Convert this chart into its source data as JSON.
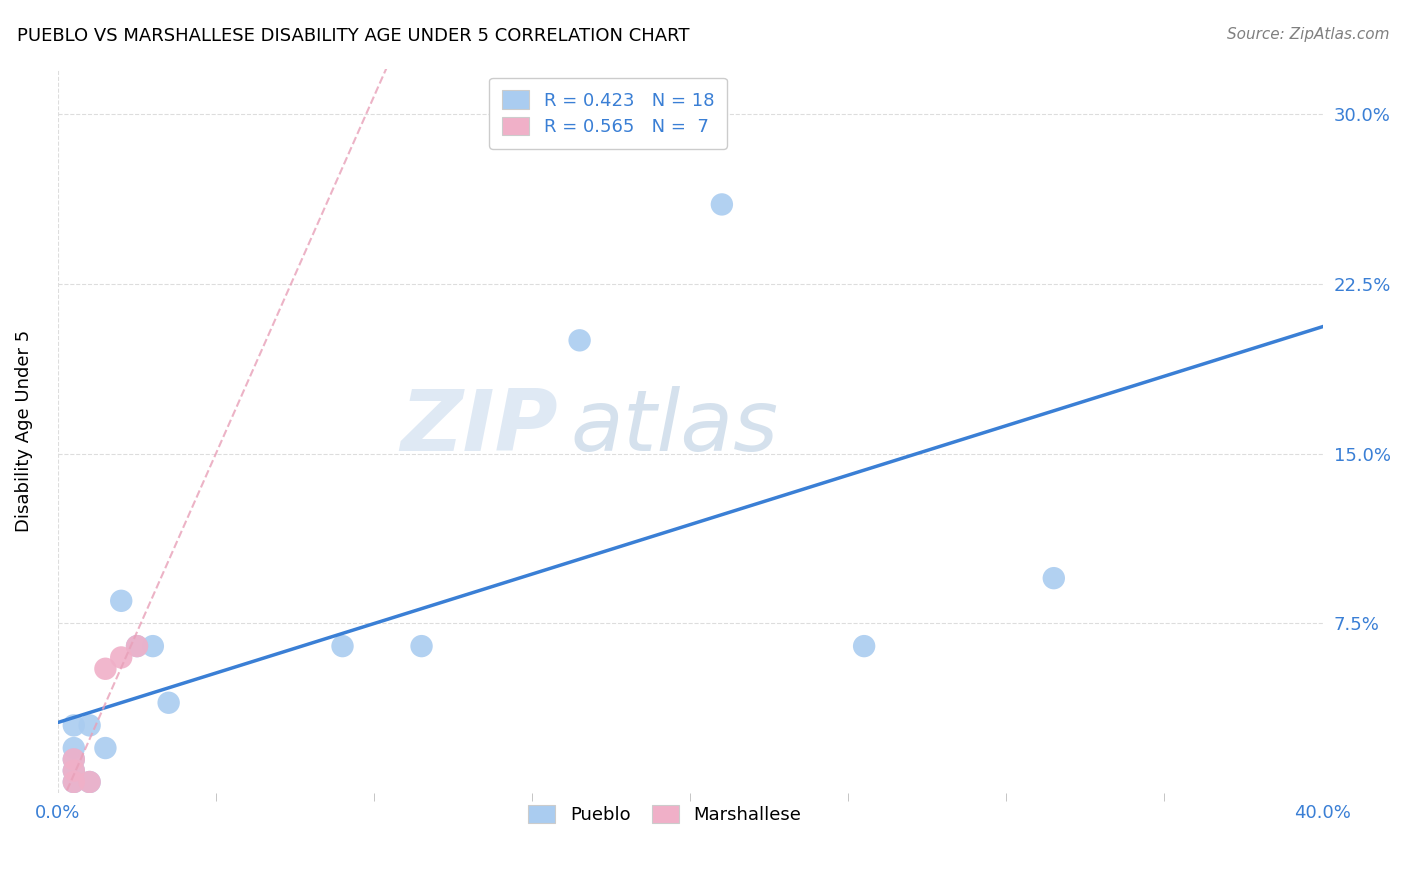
{
  "title": "PUEBLO VS MARSHALLESE DISABILITY AGE UNDER 5 CORRELATION CHART",
  "source": "Source: ZipAtlas.com",
  "ylabel": "Disability Age Under 5",
  "xlim": [
    0.0,
    0.4
  ],
  "ylim": [
    0.0,
    0.32
  ],
  "pueblo_x": [
    0.005,
    0.005,
    0.005,
    0.005,
    0.005,
    0.01,
    0.01,
    0.015,
    0.02,
    0.025,
    0.03,
    0.035,
    0.09,
    0.115,
    0.165,
    0.21,
    0.315,
    0.255
  ],
  "pueblo_y": [
    0.005,
    0.01,
    0.015,
    0.02,
    0.03,
    0.005,
    0.03,
    0.02,
    0.085,
    0.065,
    0.065,
    0.04,
    0.065,
    0.065,
    0.2,
    0.26,
    0.095,
    0.065
  ],
  "marshallese_x": [
    0.005,
    0.005,
    0.005,
    0.01,
    0.015,
    0.02,
    0.025
  ],
  "marshallese_y": [
    0.005,
    0.01,
    0.015,
    0.005,
    0.055,
    0.06,
    0.065
  ],
  "pueblo_color": "#aaccf0",
  "marshallese_color": "#f0b0c8",
  "pueblo_line_color": "#3a7fd5",
  "marshallese_line_color": "#e8a0b8",
  "pueblo_R": 0.423,
  "pueblo_N": 18,
  "marshallese_R": 0.565,
  "marshallese_N": 7,
  "watermark_zip": "ZIP",
  "watermark_atlas": "atlas",
  "grid_color": "#dddddd"
}
